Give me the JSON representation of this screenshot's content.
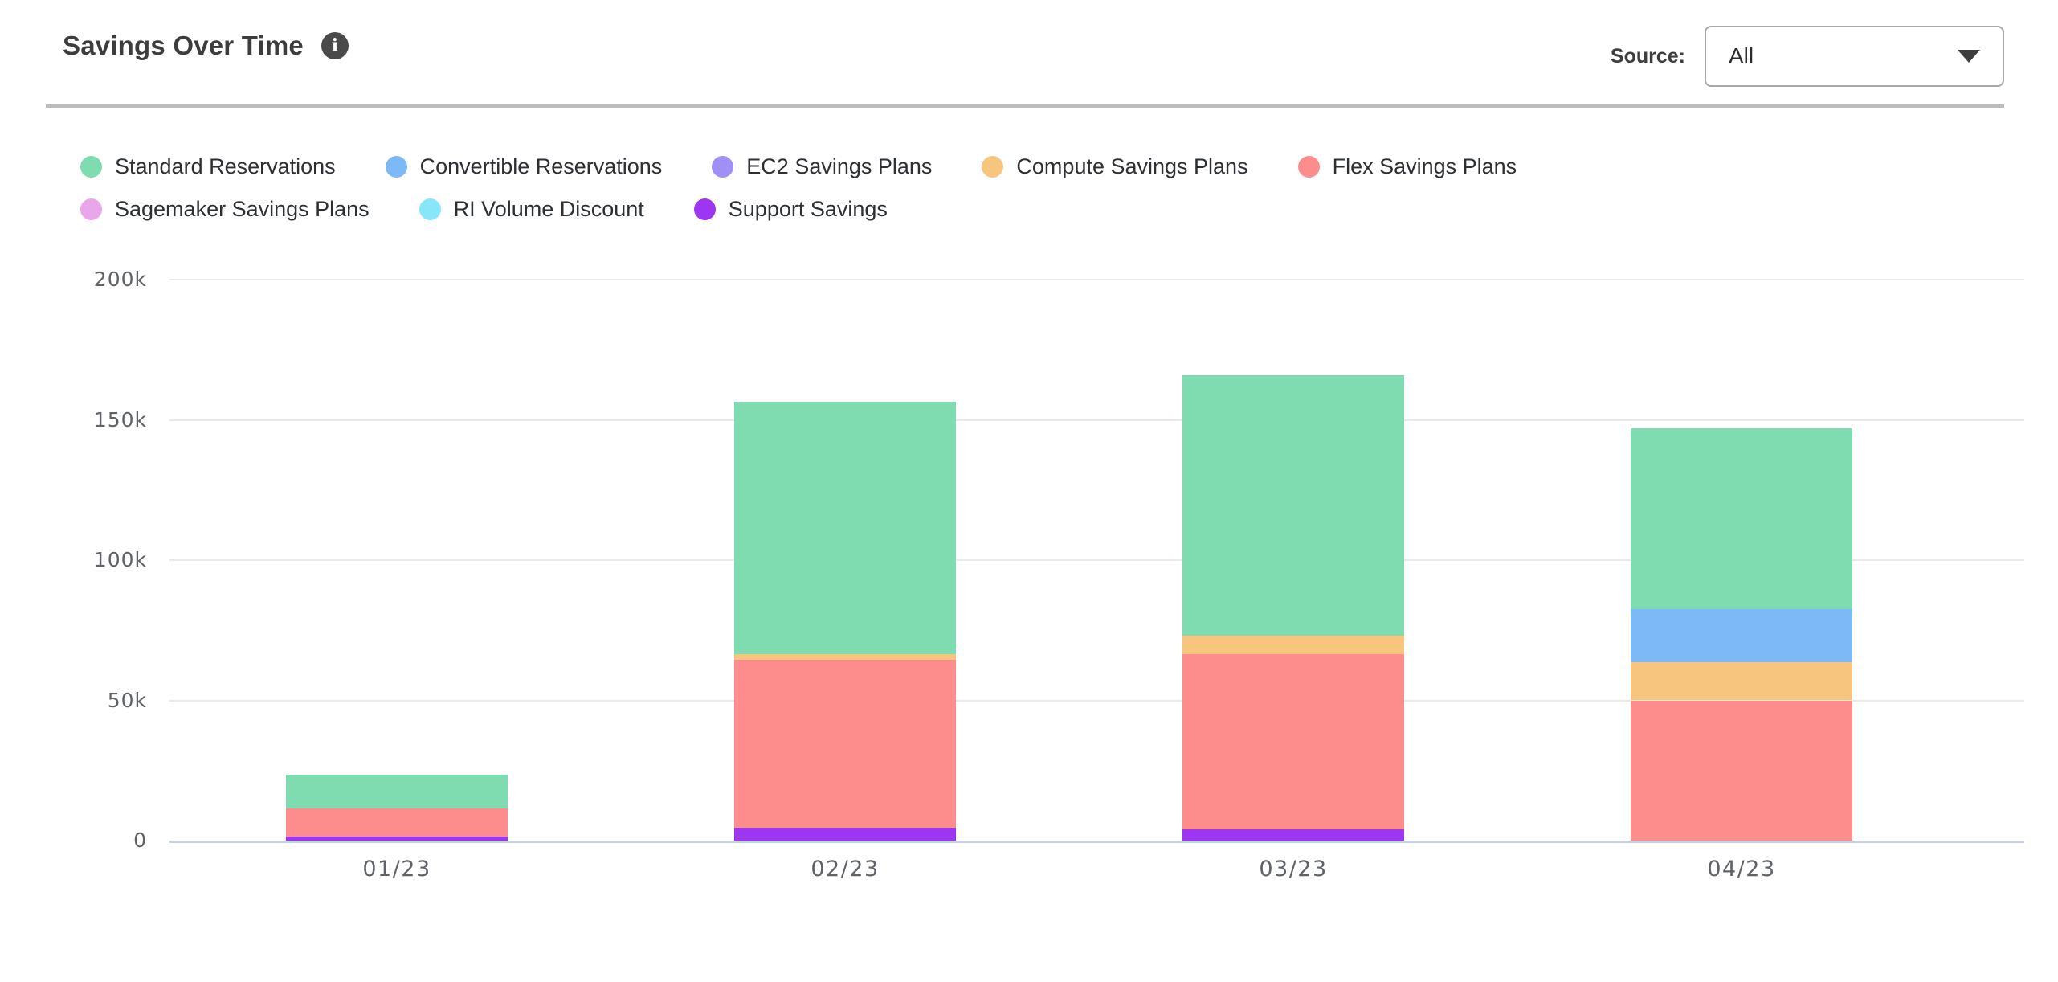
{
  "header": {
    "title": "Savings Over Time",
    "info_icon": "i",
    "source_label": "Source:",
    "source_value": "All"
  },
  "chart_data": {
    "type": "bar",
    "stacked": true,
    "title": "Savings Over Time",
    "categories": [
      "01/23",
      "02/23",
      "03/23",
      "04/23"
    ],
    "series": [
      {
        "name": "Standard Reservations",
        "color": "#7EDCB0",
        "values": [
          12000,
          90000,
          93000,
          64500
        ]
      },
      {
        "name": "Convertible Reservations",
        "color": "#7DB8F7",
        "values": [
          0,
          0,
          0,
          19000
        ]
      },
      {
        "name": "EC2 Savings Plans",
        "color": "#A08FF7",
        "values": [
          0,
          0,
          0,
          0
        ]
      },
      {
        "name": "Compute Savings Plans",
        "color": "#F8C57E",
        "values": [
          0,
          2000,
          6500,
          13500
        ]
      },
      {
        "name": "Flex Savings Plans",
        "color": "#FD8C8C",
        "values": [
          10000,
          60000,
          62500,
          50000
        ]
      },
      {
        "name": "Sagemaker Savings Plans",
        "color": "#EAA6EB",
        "values": [
          0,
          0,
          0,
          0
        ]
      },
      {
        "name": "RI Volume Discount",
        "color": "#87E7F8",
        "values": [
          0,
          0,
          0,
          0
        ]
      },
      {
        "name": "Support Savings",
        "color": "#9C36F2",
        "values": [
          1400,
          4500,
          4000,
          0
        ]
      }
    ],
    "stack_order": "bottom-to-top is reverse of legend order",
    "xlabel": "",
    "ylabel": "",
    "ylim": [
      0,
      200000
    ],
    "yticks": [
      0,
      50000,
      100000,
      150000,
      200000
    ],
    "ytick_labels": [
      "0",
      "50k",
      "100k",
      "150k",
      "200k"
    ],
    "grid": true,
    "legend_position": "top"
  }
}
